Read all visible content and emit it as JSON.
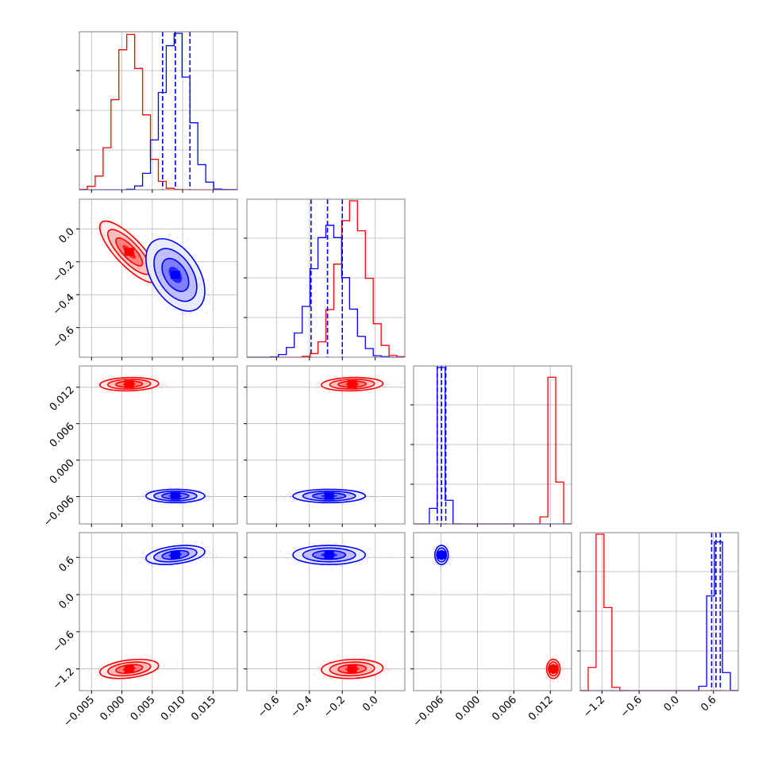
{
  "chart_data": {
    "type": "corner",
    "grid": true,
    "parameters": [
      {
        "range": [
          -0.007,
          0.019
        ],
        "ticks": [
          -0.005,
          0.0,
          0.005,
          0.01,
          0.015
        ],
        "tick_labels": [
          "−0.005",
          "0.000",
          "0.005",
          "0.010",
          "0.015"
        ]
      },
      {
        "range": [
          -0.78,
          0.18
        ],
        "ticks": [
          -0.6,
          -0.4,
          -0.2,
          0.0
        ],
        "tick_labels": [
          "−0.6",
          "−0.4",
          "−0.2",
          "0.0"
        ]
      },
      {
        "range": [
          -0.0105,
          0.0155
        ],
        "ticks": [
          -0.006,
          0.0,
          0.006,
          0.012
        ],
        "tick_labels": [
          "−0.006",
          "0.000",
          "0.006",
          "0.012"
        ]
      },
      {
        "range": [
          -1.55,
          1.0
        ],
        "ticks": [
          -1.2,
          -0.6,
          0.0,
          0.6
        ],
        "tick_labels": [
          "−1.2",
          "−0.6",
          "0.0",
          "0.6"
        ]
      }
    ],
    "series": [
      {
        "color": "#ff0000",
        "means": [
          0.0012,
          -0.14,
          0.0125,
          -1.2
        ],
        "stds": [
          0.0022,
          0.085,
          0.0005,
          0.07
        ],
        "corr": {
          "0-1": -0.8,
          "0-2": 0.1,
          "0-3": 0.35,
          "1-2": 0.1,
          "1-3": 0.1,
          "2-3": 0.0
        },
        "quantiles": []
      },
      {
        "color": "#0000ff",
        "means": [
          0.0088,
          -0.28,
          -0.0059,
          0.64
        ],
        "stds": [
          0.0022,
          0.1,
          0.0005,
          0.07
        ],
        "corr": {
          "0-1": -0.45,
          "0-2": 0.0,
          "0-3": 0.35,
          "1-2": 0.0,
          "1-3": 0.0,
          "2-3": 0.0
        },
        "quantiles": [
          [
            0.0067,
            0.0088,
            0.0112
          ],
          [
            -0.39,
            -0.29,
            -0.2
          ],
          [
            -0.0066,
            -0.0059,
            -0.0052
          ],
          [
            0.57,
            0.64,
            0.71
          ]
        ]
      }
    ]
  }
}
